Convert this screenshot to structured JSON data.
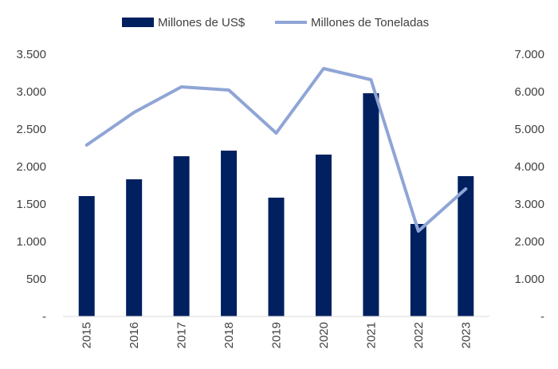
{
  "chart_data": {
    "type": "bar",
    "title": "",
    "categories": [
      "2015",
      "2016",
      "2017",
      "2018",
      "2019",
      "2020",
      "2021",
      "2022",
      "2023"
    ],
    "series": [
      {
        "name": "Millones de US$",
        "type": "bar",
        "axis": "left",
        "color": "#002060",
        "values": [
          1606,
          1830,
          2138,
          2213,
          1585,
          2160,
          2979,
          1234,
          1872
        ]
      },
      {
        "name": "Millones de Toneladas",
        "type": "line",
        "axis": "right",
        "color": "#8FA5D6",
        "values": [
          4574,
          5447,
          6128,
          6043,
          4894,
          6617,
          6319,
          2277,
          3404
        ]
      }
    ],
    "left_axis": {
      "ylim": [
        0,
        3500
      ],
      "ticks": [
        "-",
        "500",
        "1.000",
        "1.500",
        "2.000",
        "2.500",
        "3.000",
        "3.500"
      ]
    },
    "right_axis": {
      "ylim": [
        0,
        7000
      ],
      "ticks": [
        "-",
        "1.000",
        "2.000",
        "3.000",
        "4.000",
        "5.000",
        "6.000",
        "7.000"
      ]
    },
    "legend_position": "top",
    "grid": false
  }
}
